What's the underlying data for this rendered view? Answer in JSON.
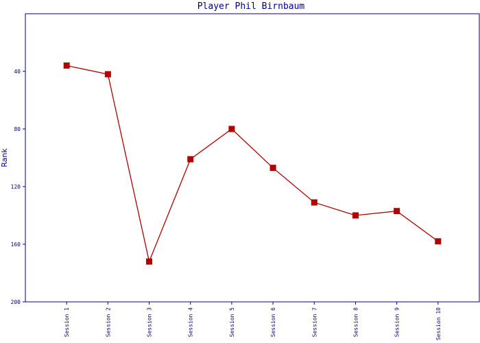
{
  "chart_data": {
    "type": "line",
    "title": "Player Phil Birnbaum",
    "y_label": "Rank",
    "categories": [
      "Session 1",
      "Session 2",
      "Session 3",
      "Session 4",
      "Session 5",
      "Session 6",
      "Session 7",
      "Session 8",
      "Session 9",
      "Session 10"
    ],
    "values": [
      36,
      42,
      172,
      101,
      80,
      107,
      131,
      140,
      137,
      158
    ],
    "color": "#b00000",
    "axis_color": "#000080",
    "ylim": [
      0,
      200
    ],
    "yticks": [
      40,
      80,
      120,
      160,
      200
    ],
    "y_inverted": true
  }
}
